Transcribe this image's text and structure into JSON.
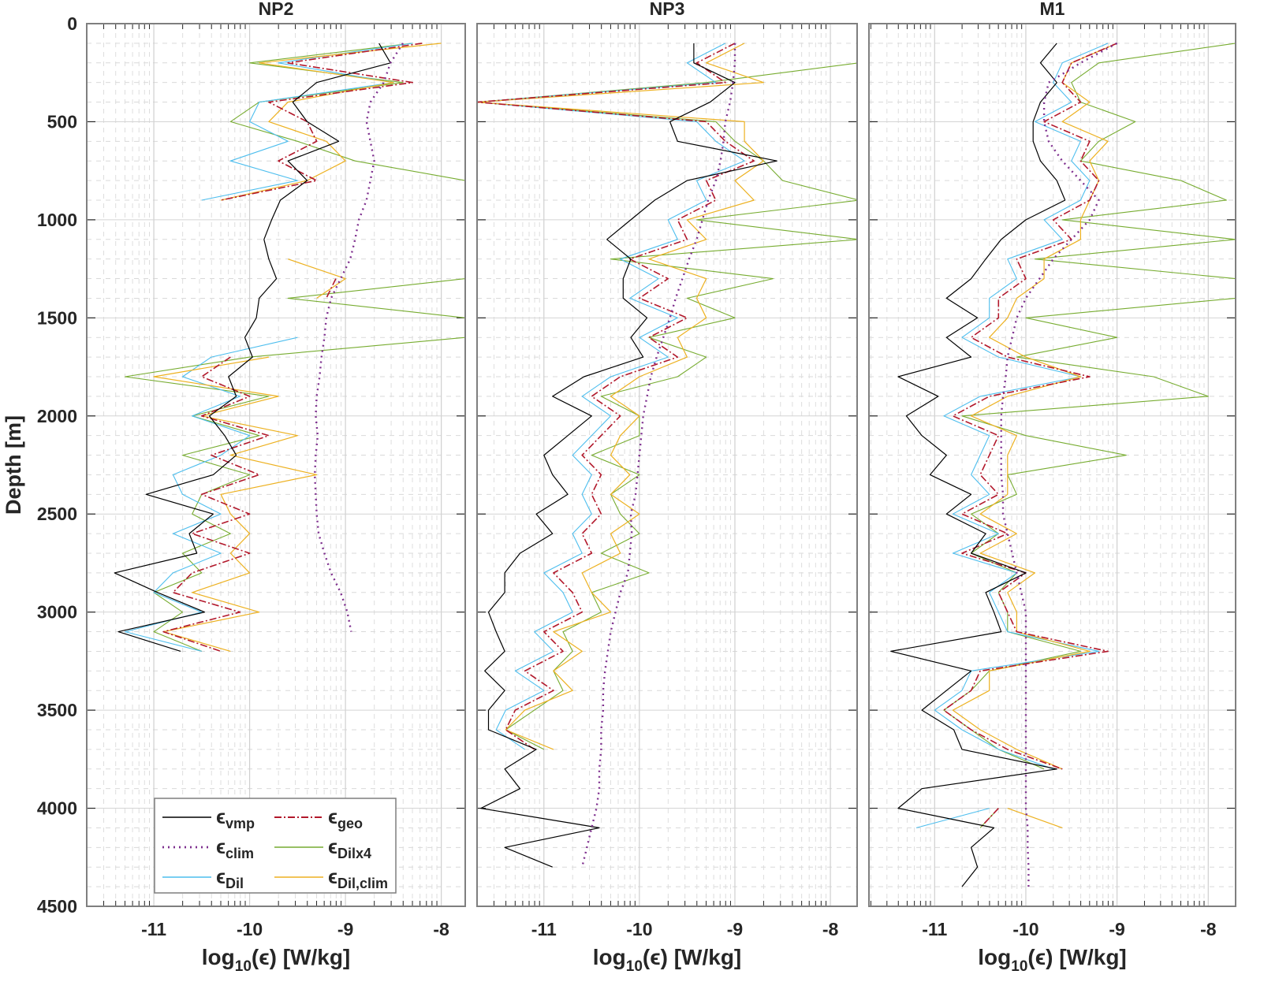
{
  "chart_data": {
    "type": "line",
    "ylabel": "Depth [m]",
    "xlabel": {
      "pre": "log",
      "sub": "10",
      "post": "(ϵ)  [W/kg]"
    },
    "ylim": [
      0,
      4500
    ],
    "yticks": [
      "0",
      "500",
      "1000",
      "1500",
      "2000",
      "2500",
      "3000",
      "3500",
      "4000",
      "4500"
    ],
    "ytick_values": [
      0,
      500,
      1000,
      1500,
      2000,
      2500,
      3000,
      3500,
      4000,
      4500
    ],
    "xticks": [
      "-11",
      "-10",
      "-9",
      "-8"
    ],
    "xtick_values": [
      -11,
      -10,
      -9,
      -8
    ],
    "grid": true,
    "legend": {
      "placement": "bottom-left of first panel",
      "entries": [
        {
          "key": "vmp",
          "symbol": "ϵ",
          "sub": "vmp"
        },
        {
          "key": "geo",
          "symbol": "ϵ",
          "sub": "geo"
        },
        {
          "key": "clim",
          "symbol": "ϵ",
          "sub": "clim"
        },
        {
          "key": "dilx4",
          "symbol": "ϵ",
          "sub": "Dilx4"
        },
        {
          "key": "dil",
          "symbol": "ϵ",
          "sub": "Dil"
        },
        {
          "key": "dilclim",
          "symbol": "ϵ",
          "sub": "Dil,clim"
        }
      ]
    },
    "colors": {
      "vmp": "#000000",
      "geo": "#b2182b",
      "clim": "#7e2f8e",
      "dilx4": "#77ac30",
      "dil": "#4dbeee",
      "dilclim": "#edb120"
    },
    "panels": [
      {
        "title": "NP2",
        "xlim": [
          -11.7,
          -7.75
        ],
        "depth_start": 100,
        "depth_step": 100,
        "series": {
          "clim": [
            -8.4,
            -8.53,
            -8.6,
            -8.74,
            -8.78,
            -8.74,
            -8.7,
            -8.74,
            -8.78,
            -8.86,
            -8.9,
            -8.95,
            -9.05,
            -9.15,
            -9.2,
            -9.22,
            -9.25,
            -9.27,
            -9.3,
            -9.31,
            -9.29,
            -9.31,
            -9.32,
            -9.31,
            -9.3,
            -9.28,
            -9.22,
            -9.15,
            -9.05,
            -8.98,
            -8.94,
            null
          ],
          "dilx4": [
            -8.3,
            -10.0,
            -8.4,
            -9.9,
            -10.2,
            -9.5,
            -8.9,
            -7.75,
            -7.75,
            null,
            null,
            null,
            -7.75,
            -9.6,
            -7.75,
            -7.75,
            -10.0,
            -11.3,
            -9.8,
            -10.6,
            -9.9,
            -10.7,
            -10.0,
            -10.5,
            -10.6,
            -10.2,
            -10.7,
            -10.5,
            -11.0,
            -10.7,
            -11.0,
            -10.5
          ],
          "dil": [
            -8.3,
            -9.7,
            -8.5,
            -9.9,
            -10.0,
            -9.6,
            -10.2,
            -9.5,
            -10.5,
            null,
            null,
            null,
            null,
            null,
            null,
            -9.5,
            -10.4,
            -10.7,
            -10.1,
            -10.6,
            -10.0,
            -10.3,
            -10.8,
            -10.7,
            -10.3,
            -10.8,
            -10.3,
            -10.8,
            -11.0,
            -10.5,
            -11.3,
            -10.5
          ],
          "dilclim": [
            -8.0,
            -9.9,
            -8.5,
            -9.6,
            -9.8,
            -9.2,
            -9.0,
            -9.4,
            -10.3,
            null,
            null,
            -9.6,
            -9.0,
            -9.3,
            null,
            null,
            -9.8,
            -11.0,
            -9.7,
            -10.5,
            -9.5,
            -10.2,
            -9.3,
            -10.3,
            -10.2,
            -10.0,
            -10.2,
            -10.0,
            -10.6,
            -9.9,
            -10.9,
            -10.2
          ],
          "geo": [
            -8.2,
            -9.6,
            -8.3,
            -9.8,
            -9.4,
            -9.3,
            -9.7,
            -9.3,
            -10.3,
            null,
            null,
            null,
            -9.1,
            -9.2,
            null,
            null,
            -10.2,
            -10.5,
            -10.0,
            -10.5,
            -9.8,
            -10.4,
            -9.9,
            -10.5,
            -10.0,
            -10.6,
            -10.0,
            -10.6,
            -10.8,
            -10.1,
            -10.9,
            -10.3
          ],
          "vmp": [
            -8.65,
            -8.53,
            -9.3,
            -9.55,
            -9.4,
            -9.07,
            -9.6,
            -9.4,
            -9.68,
            -9.77,
            -9.85,
            -9.8,
            -9.72,
            -9.9,
            -9.93,
            -10.05,
            -9.97,
            -10.22,
            -10.14,
            -10.42,
            -10.26,
            -10.14,
            -10.38,
            -11.08,
            -10.38,
            -10.63,
            -10.55,
            -11.41,
            -10.96,
            -10.47,
            -11.37,
            -10.72
          ]
        }
      },
      {
        "title": "NP3",
        "xlim": [
          -11.7,
          -7.72
        ],
        "depth_start": 100,
        "depth_step": 100,
        "series": {
          "clim": [
            -9.0,
            -9.0,
            -9.02,
            -9.05,
            -9.1,
            -9.12,
            -9.15,
            -9.2,
            -9.28,
            -9.34,
            -9.4,
            -9.48,
            -9.55,
            -9.62,
            -9.68,
            -9.75,
            -9.82,
            -9.88,
            -9.92,
            -9.96,
            -9.98,
            -10.0,
            -10.02,
            -10.04,
            -10.09,
            -10.08,
            -10.1,
            -10.12,
            -10.2,
            -10.25,
            -10.3,
            -10.33,
            -10.36,
            -10.38,
            -10.38,
            -10.4,
            -10.4,
            -10.42,
            -10.42,
            -10.45,
            -10.5,
            -10.55,
            -10.6
          ],
          "dilx4": [
            -7.7,
            -7.7,
            -9.3,
            -11.7,
            -9.2,
            -9.0,
            -8.7,
            -8.5,
            -7.7,
            -9.4,
            -7.7,
            -10.3,
            -8.6,
            -9.5,
            -9.0,
            -9.9,
            -9.3,
            -9.6,
            -10.4,
            -10.0,
            -10.0,
            -10.5,
            -10.0,
            -10.3,
            -10.2,
            -10.0,
            -10.4,
            -9.9,
            -10.5,
            -10.4,
            -10.8,
            -10.7,
            -10.9,
            -10.8,
            -11.1,
            -11.4,
            -11.0,
            null,
            null,
            -10.6,
            null,
            null,
            null
          ],
          "dil": [
            -9.1,
            -9.5,
            -9.2,
            -11.7,
            -9.4,
            -9.2,
            -8.9,
            -9.4,
            -9.3,
            -9.7,
            -9.6,
            -10.2,
            -9.8,
            -10.1,
            -9.6,
            -10.0,
            -9.7,
            -10.3,
            -10.6,
            -10.3,
            -10.5,
            -10.7,
            -10.5,
            -10.6,
            -10.5,
            -10.7,
            -10.6,
            -11.0,
            -10.8,
            -10.7,
            -11.1,
            -10.9,
            -11.3,
            -11.0,
            -11.4,
            -11.5,
            -11.2,
            null,
            null,
            -10.7,
            null,
            null,
            null
          ],
          "dilclim": [
            -8.9,
            -9.3,
            -8.7,
            -11.7,
            -8.9,
            -8.9,
            -8.7,
            -9.0,
            -8.8,
            -9.5,
            -9.3,
            -9.9,
            -9.3,
            -9.4,
            -9.3,
            -9.6,
            -9.5,
            -10.0,
            -10.3,
            -10.0,
            -10.2,
            -10.3,
            -10.1,
            -10.3,
            -10.0,
            -10.3,
            -10.2,
            -10.6,
            -10.5,
            -10.3,
            -10.9,
            -10.6,
            -10.9,
            -10.7,
            -11.2,
            -11.4,
            -10.9,
            null,
            null,
            -10.6,
            null,
            null,
            null
          ],
          "geo": [
            -9.0,
            -9.4,
            -9.1,
            -11.7,
            -9.3,
            -9.1,
            -8.8,
            -9.3,
            -9.2,
            -9.6,
            -9.5,
            -10.1,
            -9.7,
            -10.0,
            -9.5,
            -9.9,
            -9.6,
            -10.2,
            -10.5,
            -10.2,
            -10.4,
            -10.6,
            -10.4,
            -10.5,
            -10.4,
            -10.6,
            -10.5,
            -10.9,
            -10.7,
            -10.6,
            -11.0,
            -10.8,
            -11.2,
            -10.9,
            -11.3,
            -11.4,
            -11.1,
            null,
            null,
            -10.6,
            null,
            null,
            null
          ],
          "vmp": [
            -9.43,
            -9.43,
            -9.0,
            -9.26,
            -9.68,
            -9.6,
            -8.56,
            -9.5,
            -9.84,
            -10.09,
            -10.34,
            -10.09,
            -10.17,
            -10.17,
            -9.92,
            -10.09,
            -9.96,
            -10.58,
            -10.91,
            -10.5,
            -10.75,
            -11.0,
            -10.91,
            -10.75,
            -11.08,
            -10.91,
            -11.25,
            -11.41,
            -11.41,
            -11.58,
            -11.5,
            -11.41,
            -11.62,
            -11.41,
            -11.58,
            -11.58,
            -11.08,
            -11.41,
            -11.25,
            -11.66,
            -10.42,
            -11.41,
            -10.91
          ]
        }
      },
      {
        "title": "M1",
        "xlim": [
          -11.72,
          -7.7
        ],
        "depth_start": 100,
        "depth_step": 100,
        "series": {
          "clim": [
            -9.0,
            -9.4,
            -9.75,
            -9.8,
            -9.8,
            -9.75,
            -9.6,
            -9.4,
            -9.2,
            -9.3,
            -9.5,
            -9.7,
            -9.85,
            -10.0,
            -10.1,
            -10.15,
            -10.2,
            -10.22,
            -10.25,
            -10.27,
            -10.27,
            -10.27,
            -10.27,
            -10.25,
            -10.25,
            -10.2,
            -10.15,
            -10.1,
            -10.05,
            -10.0,
            -10.0,
            -10.0,
            -10.0,
            -10.0,
            -10.0,
            -10.0,
            -10.0,
            -10.0,
            -10.0,
            -10.0,
            -9.98,
            -9.98,
            -9.97,
            -9.97
          ],
          "dilx4": [
            -7.7,
            -9.2,
            -9.5,
            -9.4,
            -8.8,
            -9.2,
            -9.4,
            -8.3,
            -7.8,
            -9.6,
            -7.7,
            -9.9,
            -7.7,
            -7.7,
            -10.0,
            -9.0,
            -10.1,
            -8.6,
            -8.0,
            -10.7,
            -10.0,
            -8.9,
            -10.2,
            -10.1,
            -10.6,
            -10.3,
            -10.6,
            -10.1,
            -10.3,
            -10.2,
            -10.2,
            -9.4,
            -10.4,
            -10.6,
            -10.9,
            -10.6,
            -10.3,
            -9.8,
            null,
            -10.3,
            -10.5,
            null,
            null,
            null
          ],
          "dil": [
            -9.1,
            -9.6,
            -9.7,
            -9.5,
            -9.9,
            -9.4,
            -9.5,
            -9.3,
            -9.4,
            -9.8,
            -9.6,
            -10.2,
            -10.1,
            -10.4,
            -10.4,
            -10.7,
            -10.3,
            -9.4,
            -10.5,
            -10.9,
            -10.4,
            -10.5,
            -10.6,
            -10.4,
            -10.8,
            -10.3,
            -10.8,
            -10.1,
            -10.4,
            -10.3,
            -10.2,
            -9.2,
            -10.6,
            -10.7,
            -11.0,
            -10.7,
            -10.3,
            -9.7,
            null,
            -10.4,
            -11.2,
            null,
            null,
            null
          ],
          "dilclim": [
            -9.0,
            -9.5,
            -9.6,
            -9.3,
            -9.6,
            -9.1,
            -9.3,
            -9.2,
            -9.3,
            -9.4,
            -9.4,
            -9.8,
            -9.8,
            -10.1,
            -10.2,
            -10.4,
            -10.0,
            -9.4,
            -10.2,
            -10.6,
            -10.1,
            -10.2,
            -10.2,
            -10.2,
            -10.5,
            -10.1,
            -10.5,
            -9.9,
            -10.2,
            -10.1,
            -10.1,
            -9.3,
            -10.4,
            -10.4,
            -10.8,
            -10.5,
            -10.1,
            -9.6,
            null,
            -10.2,
            -9.6,
            null,
            null,
            null
          ],
          "geo": [
            -9.0,
            -9.5,
            -9.6,
            -9.4,
            -9.8,
            -9.3,
            -9.4,
            -9.2,
            -9.3,
            -9.7,
            -9.5,
            -10.1,
            -10.0,
            -10.3,
            -10.3,
            -10.6,
            -10.2,
            -9.3,
            -10.4,
            -10.8,
            -10.3,
            -10.4,
            -10.5,
            -10.3,
            -10.7,
            -10.2,
            -10.7,
            -10.0,
            -10.3,
            -10.2,
            -10.1,
            -9.1,
            -10.5,
            -10.6,
            -10.9,
            -10.6,
            -10.2,
            -9.6,
            null,
            -10.3,
            -10.5,
            null,
            null,
            null
          ],
          "vmp": [
            -9.66,
            -9.84,
            -9.66,
            -9.84,
            -9.92,
            -9.92,
            -9.84,
            -9.66,
            -9.57,
            -10.0,
            -10.27,
            -10.44,
            -10.6,
            -10.87,
            -10.53,
            -10.87,
            -10.6,
            -11.4,
            -10.96,
            -11.31,
            -11.14,
            -10.87,
            -11.05,
            -10.6,
            -10.87,
            -10.44,
            -10.6,
            -10.0,
            -10.44,
            -10.35,
            -10.27,
            -11.48,
            -10.6,
            -10.87,
            -11.14,
            -10.79,
            -10.7,
            -9.66,
            -11.14,
            -11.4,
            -10.35,
            -10.6,
            -10.53,
            -10.7
          ]
        }
      }
    ]
  }
}
